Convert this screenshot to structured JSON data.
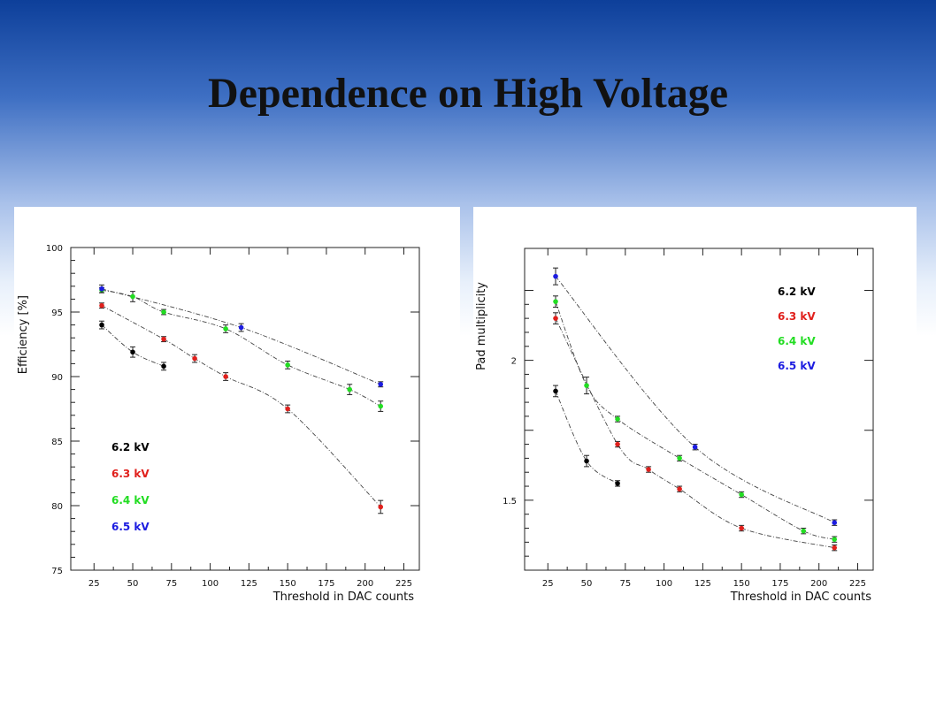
{
  "slide": {
    "title": "Dependence on High Voltage"
  },
  "colors": {
    "6.2 kV": "#000000",
    "6.3 kV": "#e0201c",
    "6.4 kV": "#22dd22",
    "6.5 kV": "#1c1ce0"
  },
  "chart_data": [
    {
      "type": "scatter",
      "xlabel": "Threshold in DAC counts",
      "ylabel": "Efficiency [%]",
      "xlim": [
        10,
        235
      ],
      "ylim": [
        75,
        100
      ],
      "xticks": [
        25,
        50,
        75,
        100,
        125,
        150,
        175,
        200,
        225
      ],
      "yticks": [
        75,
        80,
        85,
        90,
        95,
        100
      ],
      "legend": [
        "6.2 kV",
        "6.3 kV",
        "6.4 kV",
        "6.5 kV"
      ],
      "legend_position": "bottom-left",
      "series": [
        {
          "name": "6.2 kV",
          "color": "#000000",
          "x": [
            30,
            50,
            70
          ],
          "y": [
            94.0,
            91.9,
            90.8
          ],
          "err": [
            0.3,
            0.4,
            0.3
          ]
        },
        {
          "name": "6.3 kV",
          "color": "#e0201c",
          "x": [
            30,
            70,
            90,
            110,
            150,
            210
          ],
          "y": [
            95.5,
            92.9,
            91.4,
            90.0,
            87.5,
            79.9
          ],
          "err": [
            0.2,
            0.2,
            0.3,
            0.3,
            0.3,
            0.5
          ]
        },
        {
          "name": "6.4 kV",
          "color": "#22dd22",
          "x": [
            30,
            50,
            70,
            110,
            150,
            190,
            210
          ],
          "y": [
            96.7,
            96.2,
            95.0,
            93.7,
            90.9,
            89.0,
            87.7
          ],
          "err": [
            0.2,
            0.4,
            0.2,
            0.3,
            0.3,
            0.4,
            0.4
          ]
        },
        {
          "name": "6.5 kV",
          "color": "#1c1ce0",
          "x": [
            30,
            120,
            210
          ],
          "y": [
            96.8,
            93.8,
            89.4
          ],
          "err": [
            0.3,
            0.3,
            0.2
          ]
        }
      ]
    },
    {
      "type": "scatter",
      "xlabel": "Threshold in DAC counts",
      "ylabel": "Pad multiplicity",
      "xlim": [
        10,
        235
      ],
      "ylim": [
        1.25,
        2.4
      ],
      "xticks": [
        25,
        50,
        75,
        100,
        125,
        150,
        175,
        200,
        225
      ],
      "yticks": [
        1.25,
        1.5,
        1.75,
        2.0,
        2.25
      ],
      "yticklabels": [
        "",
        "1.5",
        "",
        "2",
        ""
      ],
      "legend": [
        "6.2 kV",
        "6.3 kV",
        "6.4 kV",
        "6.5 kV"
      ],
      "legend_position": "top-right",
      "series": [
        {
          "name": "6.2 kV",
          "color": "#000000",
          "x": [
            30,
            50,
            70
          ],
          "y": [
            1.89,
            1.64,
            1.56
          ],
          "err": [
            0.02,
            0.02,
            0.01
          ]
        },
        {
          "name": "6.3 kV",
          "color": "#e0201c",
          "x": [
            30,
            70,
            90,
            110,
            150,
            210
          ],
          "y": [
            2.15,
            1.7,
            1.61,
            1.54,
            1.4,
            1.33
          ],
          "err": [
            0.02,
            0.01,
            0.01,
            0.01,
            0.01,
            0.01
          ]
        },
        {
          "name": "6.4 kV",
          "color": "#22dd22",
          "x": [
            30,
            50,
            70,
            110,
            150,
            190,
            210
          ],
          "y": [
            2.21,
            1.91,
            1.79,
            1.65,
            1.52,
            1.39,
            1.36
          ],
          "err": [
            0.02,
            0.03,
            0.01,
            0.01,
            0.01,
            0.01,
            0.01
          ]
        },
        {
          "name": "6.5 kV",
          "color": "#1c1ce0",
          "x": [
            30,
            120,
            210
          ],
          "y": [
            2.3,
            1.69,
            1.42
          ],
          "err": [
            0.03,
            0.01,
            0.01
          ]
        }
      ]
    }
  ]
}
